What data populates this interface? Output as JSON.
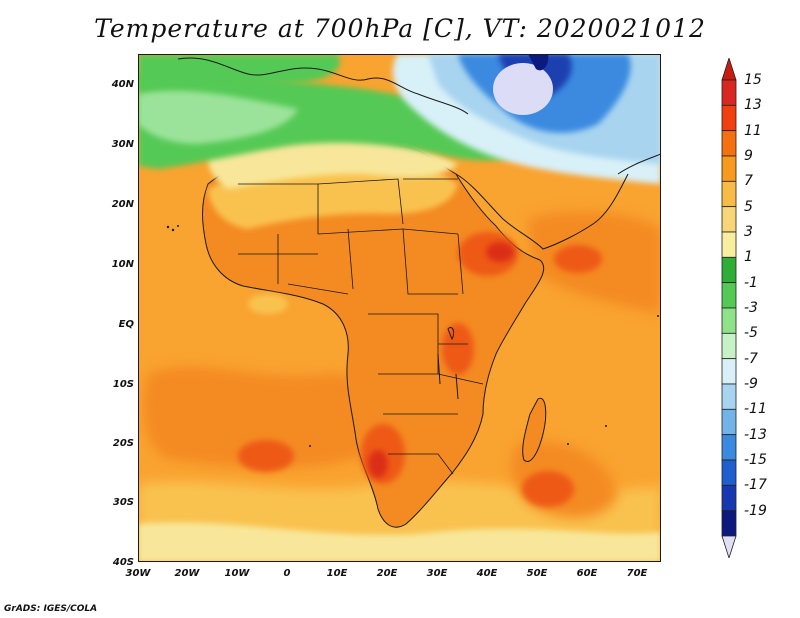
{
  "title": "Temperature at 700hPa [C], VT: 2020021012",
  "credit": "GrADS: IGES/COLA",
  "lat_ticks": [
    "40N",
    "30N",
    "20N",
    "10N",
    "EQ",
    "10S",
    "20S",
    "30S",
    "40S"
  ],
  "lon_ticks": [
    "30W",
    "20W",
    "10W",
    "0",
    "10E",
    "20E",
    "30E",
    "40E",
    "50E",
    "60E",
    "70E"
  ],
  "colorbar": {
    "labels": [
      "15",
      "13",
      "11",
      "9",
      "7",
      "5",
      "3",
      "1",
      "-1",
      "-3",
      "-5",
      "-7",
      "-9",
      "-11",
      "-13",
      "-15",
      "-17",
      "-19"
    ],
    "colors": [
      "#d8281f",
      "#f04010",
      "#f57010",
      "#f79a1e",
      "#f9bb48",
      "#f8d678",
      "#f8eea0",
      "#2eae35",
      "#55c955",
      "#8ee28a",
      "#c6f2c6",
      "#d8f0f8",
      "#a8d4f0",
      "#72b4e8",
      "#3a8ae0",
      "#1e5fd0",
      "#1838b0",
      "#0c1a80"
    ],
    "top_arrow_color": "#c81c10",
    "bottom_arrow_color": "#e0e0f5"
  },
  "map_colors": {
    "ocean": "#f9a330",
    "land_warm": "#f48a22",
    "hot": "#ee5a16",
    "very_hot": "#dc2f16",
    "mild": "#f9c24f",
    "pale": "#f8e79a",
    "green": "#55c955",
    "light_green": "#9be39a",
    "cyan": "#d8f0f8",
    "light_blue": "#a8d4f0",
    "blue": "#3a8ae0",
    "dark_blue": "#1e40b0",
    "navy": "#0c1a80",
    "lavender": "#dcdcf6"
  }
}
